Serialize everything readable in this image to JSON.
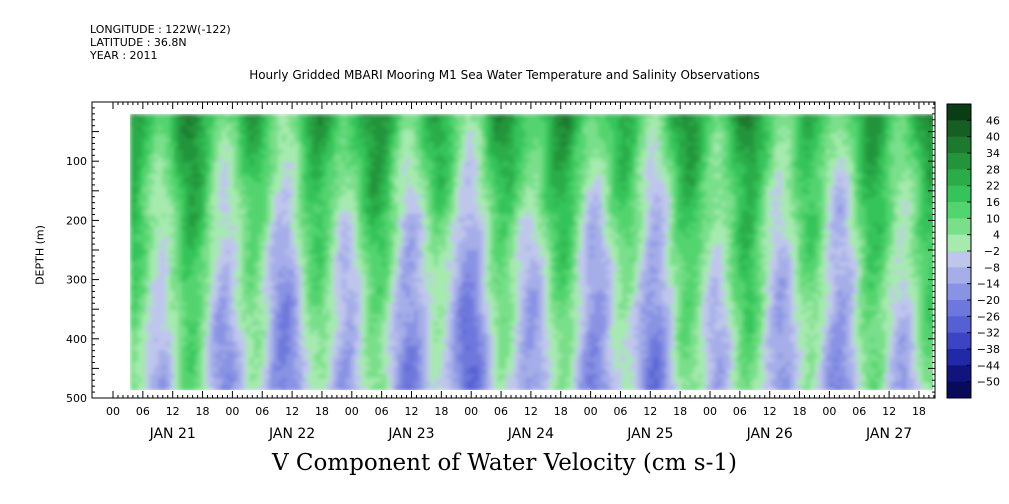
{
  "header": {
    "longitude": "LONGITUDE : 122W(-122)",
    "latitude": "LATITUDE : 36.8N",
    "year": "YEAR : 2011"
  },
  "chart_data": {
    "type": "heatmap",
    "title": "Hourly Gridded MBARI Mooring M1 Sea Water Temperature and Salinity Observations",
    "xlabel": "V Component of Water Velocity (cm s-1)",
    "ylabel": "DEPTH (m)",
    "y_inverted": true,
    "ylim": [
      500,
      0
    ],
    "y_ticks": [
      100,
      200,
      300,
      400,
      500
    ],
    "x_day_labels": [
      "JAN 21",
      "JAN 22",
      "JAN 23",
      "JAN 24",
      "JAN 25",
      "JAN 26",
      "JAN 27"
    ],
    "x_hour_labels": [
      "00",
      "06",
      "12",
      "18"
    ],
    "x_first_hour_label": "00",
    "colorbar_levels": [
      46,
      40,
      34,
      28,
      22,
      16,
      10,
      4,
      -2,
      -8,
      -14,
      -20,
      -26,
      -32,
      -38,
      -44,
      -50
    ],
    "colorbar_colors": [
      "#0b3d15",
      "#155f23",
      "#1b7a2e",
      "#22943a",
      "#2aad48",
      "#36c45a",
      "#52d46e",
      "#79df8a",
      "#a6eaae",
      "#bfc6ec",
      "#a5aee8",
      "#8993e3",
      "#6e78dc",
      "#5560d4",
      "#3b45c4",
      "#2229a6",
      "#10147c",
      "#080a5a"
    ],
    "color_legend": {
      "positive": "green",
      "negative": "blue"
    }
  }
}
